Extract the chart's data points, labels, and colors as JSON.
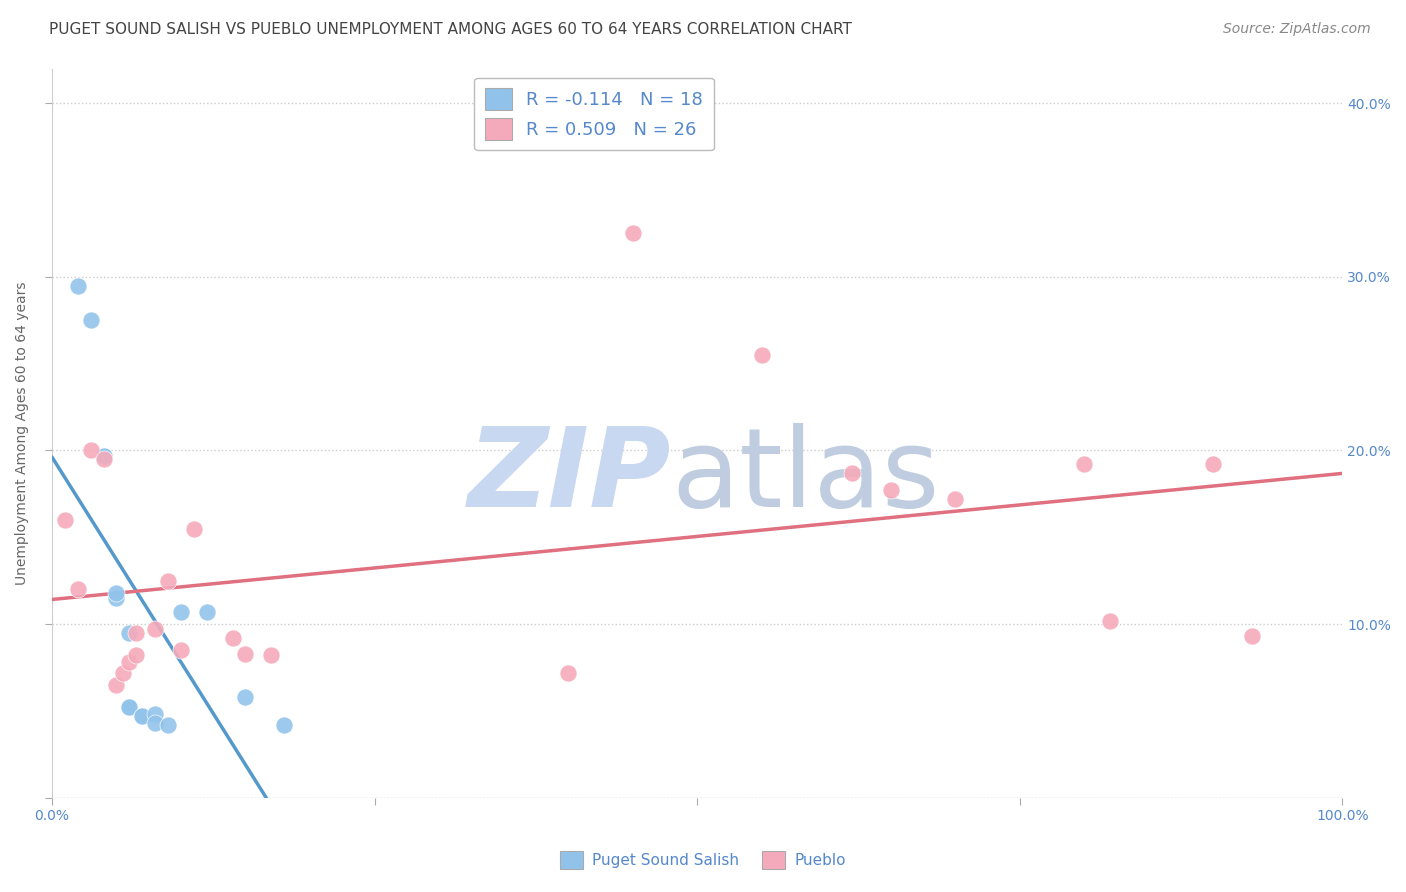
{
  "title": "PUGET SOUND SALISH VS PUEBLO UNEMPLOYMENT AMONG AGES 60 TO 64 YEARS CORRELATION CHART",
  "source": "Source: ZipAtlas.com",
  "ylabel": "Unemployment Among Ages 60 to 64 years",
  "xlim": [
    0.0,
    1.0
  ],
  "ylim": [
    0.0,
    0.42
  ],
  "xticks": [
    0.0,
    0.25,
    0.5,
    0.75,
    1.0
  ],
  "xticklabels": [
    "0.0%",
    "",
    "",
    "",
    "100.0%"
  ],
  "yticks": [
    0.0,
    0.1,
    0.2,
    0.3,
    0.4
  ],
  "yticklabels_right": [
    "",
    "10.0%",
    "20.0%",
    "30.0%",
    "40.0%"
  ],
  "blue_R": -0.114,
  "blue_N": 18,
  "pink_R": 0.509,
  "pink_N": 26,
  "blue_color": "#91C3EA",
  "pink_color": "#F5AABB",
  "blue_line_color": "#5599CC",
  "pink_line_color": "#E07080",
  "grid_color": "#CCCCCC",
  "bg_color": "#FFFFFF",
  "watermark_zip_color": "#C8D8F0",
  "watermark_atlas_color": "#C0CCE0",
  "blue_x": [
    0.02,
    0.03,
    0.04,
    0.04,
    0.05,
    0.05,
    0.06,
    0.06,
    0.06,
    0.07,
    0.07,
    0.08,
    0.08,
    0.09,
    0.1,
    0.12,
    0.15,
    0.18
  ],
  "blue_y": [
    0.295,
    0.275,
    0.197,
    0.197,
    0.115,
    0.118,
    0.095,
    0.052,
    0.052,
    0.047,
    0.047,
    0.048,
    0.043,
    0.042,
    0.107,
    0.107,
    0.058,
    0.042
  ],
  "pink_x": [
    0.01,
    0.02,
    0.03,
    0.04,
    0.05,
    0.055,
    0.06,
    0.065,
    0.065,
    0.08,
    0.09,
    0.1,
    0.11,
    0.14,
    0.15,
    0.17,
    0.4,
    0.45,
    0.55,
    0.62,
    0.65,
    0.7,
    0.8,
    0.82,
    0.9,
    0.93
  ],
  "pink_y": [
    0.16,
    0.12,
    0.2,
    0.195,
    0.065,
    0.072,
    0.078,
    0.082,
    0.095,
    0.097,
    0.125,
    0.085,
    0.155,
    0.092,
    0.083,
    0.082,
    0.072,
    0.325,
    0.255,
    0.187,
    0.177,
    0.172,
    0.192,
    0.102,
    0.192,
    0.093
  ],
  "title_fontsize": 11,
  "label_fontsize": 10,
  "tick_fontsize": 10,
  "source_fontsize": 10,
  "legend_fontsize": 13
}
